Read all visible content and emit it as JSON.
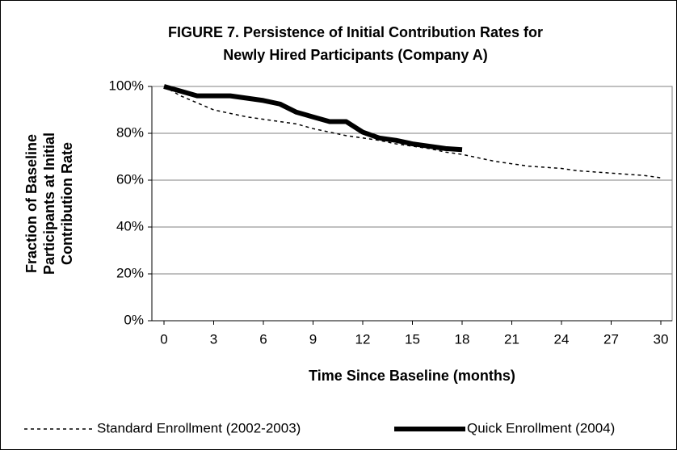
{
  "chart_data": {
    "type": "line",
    "title": [
      "FIGURE 7.  Persistence of Initial Contribution Rates for",
      "Newly Hired Participants (Company A)"
    ],
    "y_label": [
      "Fraction of Baseline",
      "Participants at Initial",
      "Contribution Rate"
    ],
    "x_label": "Time Since Baseline (months)",
    "x": [
      0,
      1,
      2,
      3,
      4,
      5,
      6,
      7,
      8,
      9,
      10,
      11,
      12,
      13,
      14,
      15,
      16,
      17,
      18,
      19,
      20,
      21,
      22,
      23,
      24,
      25,
      26,
      27,
      28,
      29,
      30
    ],
    "series": [
      {
        "name": "Standard Enrollment (2002-2003)",
        "color": "#000000",
        "dash": true,
        "values": [
          100,
          96,
          93,
          90,
          88.5,
          87,
          86,
          85,
          84,
          82,
          80.5,
          79,
          78,
          77,
          75.5,
          74.5,
          73.5,
          72,
          71,
          69.5,
          68,
          67,
          66,
          65.5,
          65,
          64,
          63.5,
          63,
          62.5,
          62,
          61
        ]
      },
      {
        "name": "Quick Enrollment (2004)",
        "color": "#000000",
        "dash": false,
        "values": [
          100,
          98,
          96,
          96,
          96,
          95,
          94,
          92.5,
          89,
          87,
          85,
          85,
          80.5,
          78,
          77,
          75.5,
          74.5,
          73.5,
          73,
          null,
          null,
          null,
          null,
          null,
          null,
          null,
          null,
          null,
          null,
          null,
          null
        ]
      }
    ],
    "xlim": [
      0,
      30
    ],
    "xticks": [
      0,
      3,
      6,
      9,
      12,
      15,
      18,
      21,
      24,
      27,
      30
    ],
    "ylim": [
      0,
      100
    ],
    "yticks": [
      {
        "value": 0,
        "label": "0%"
      },
      {
        "value": 20,
        "label": "20%"
      },
      {
        "value": 40,
        "label": "40%"
      },
      {
        "value": 60,
        "label": "60%"
      },
      {
        "value": 80,
        "label": "80%"
      },
      {
        "value": 100,
        "label": "100%"
      }
    ],
    "grid": true,
    "legend": "bottom"
  }
}
